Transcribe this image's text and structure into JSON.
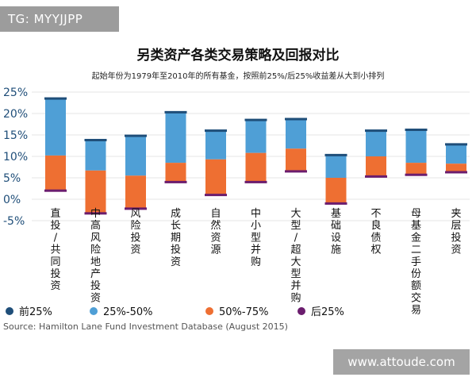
{
  "watermark_top": "TG: MYYJJPP",
  "watermark_bottom": "www.attoude.com",
  "colors": {
    "top25": "#1f4e79",
    "q2": "#4f9fd6",
    "q3": "#ee6f32",
    "bottom25": "#6b1d6e",
    "grid": "#e4e4e4",
    "axis_text": "#1f4e79"
  },
  "chart_data": {
    "type": "bar",
    "title": "另类资产各类交易策略及回报对比",
    "subtitle": "起始年份为1979年至2010年的所有基金，按照前25%/后25%收益差从大到小排列",
    "source": "Source: Hamilton Lane Fund Investment Database (August 2015)",
    "ylim": [
      -5,
      25
    ],
    "yticks": [
      "25%",
      "20%",
      "15%",
      "10%",
      "5%",
      "0%",
      "-5%"
    ],
    "ytick_values": [
      25,
      20,
      15,
      10,
      5,
      0,
      -5
    ],
    "categories": [
      "直投/共同投资",
      "中高风险地产投资",
      "风险投资",
      "成长期投资",
      "自然资源",
      "中小型并购",
      "大型/超大型并购",
      "基础设施",
      "不良债权",
      "母基金二手份额交易",
      "夹层投资"
    ],
    "series": [
      {
        "name": "前25%",
        "values": [
          23.5,
          13.8,
          14.8,
          20.3,
          16.0,
          18.5,
          18.7,
          10.3,
          16.0,
          16.2,
          12.8
        ]
      },
      {
        "name": "25%-50%",
        "values": [
          10.2,
          6.7,
          5.5,
          8.5,
          9.3,
          10.8,
          11.8,
          5.0,
          10.0,
          8.5,
          8.3
        ]
      },
      {
        "name": "50%-75%",
        "values": [
          10.2,
          6.7,
          5.5,
          8.5,
          9.3,
          10.8,
          11.8,
          5.0,
          10.0,
          8.5,
          8.3
        ]
      },
      {
        "name": "后25%",
        "values": [
          2.0,
          -3.3,
          -2.2,
          4.0,
          1.0,
          4.0,
          6.5,
          -1.0,
          5.3,
          5.7,
          6.3
        ]
      }
    ],
    "legend": [
      "前25%",
      "25%-50%",
      "50%-75%",
      "后25%"
    ],
    "legend_position": "bottom",
    "grid": true
  }
}
